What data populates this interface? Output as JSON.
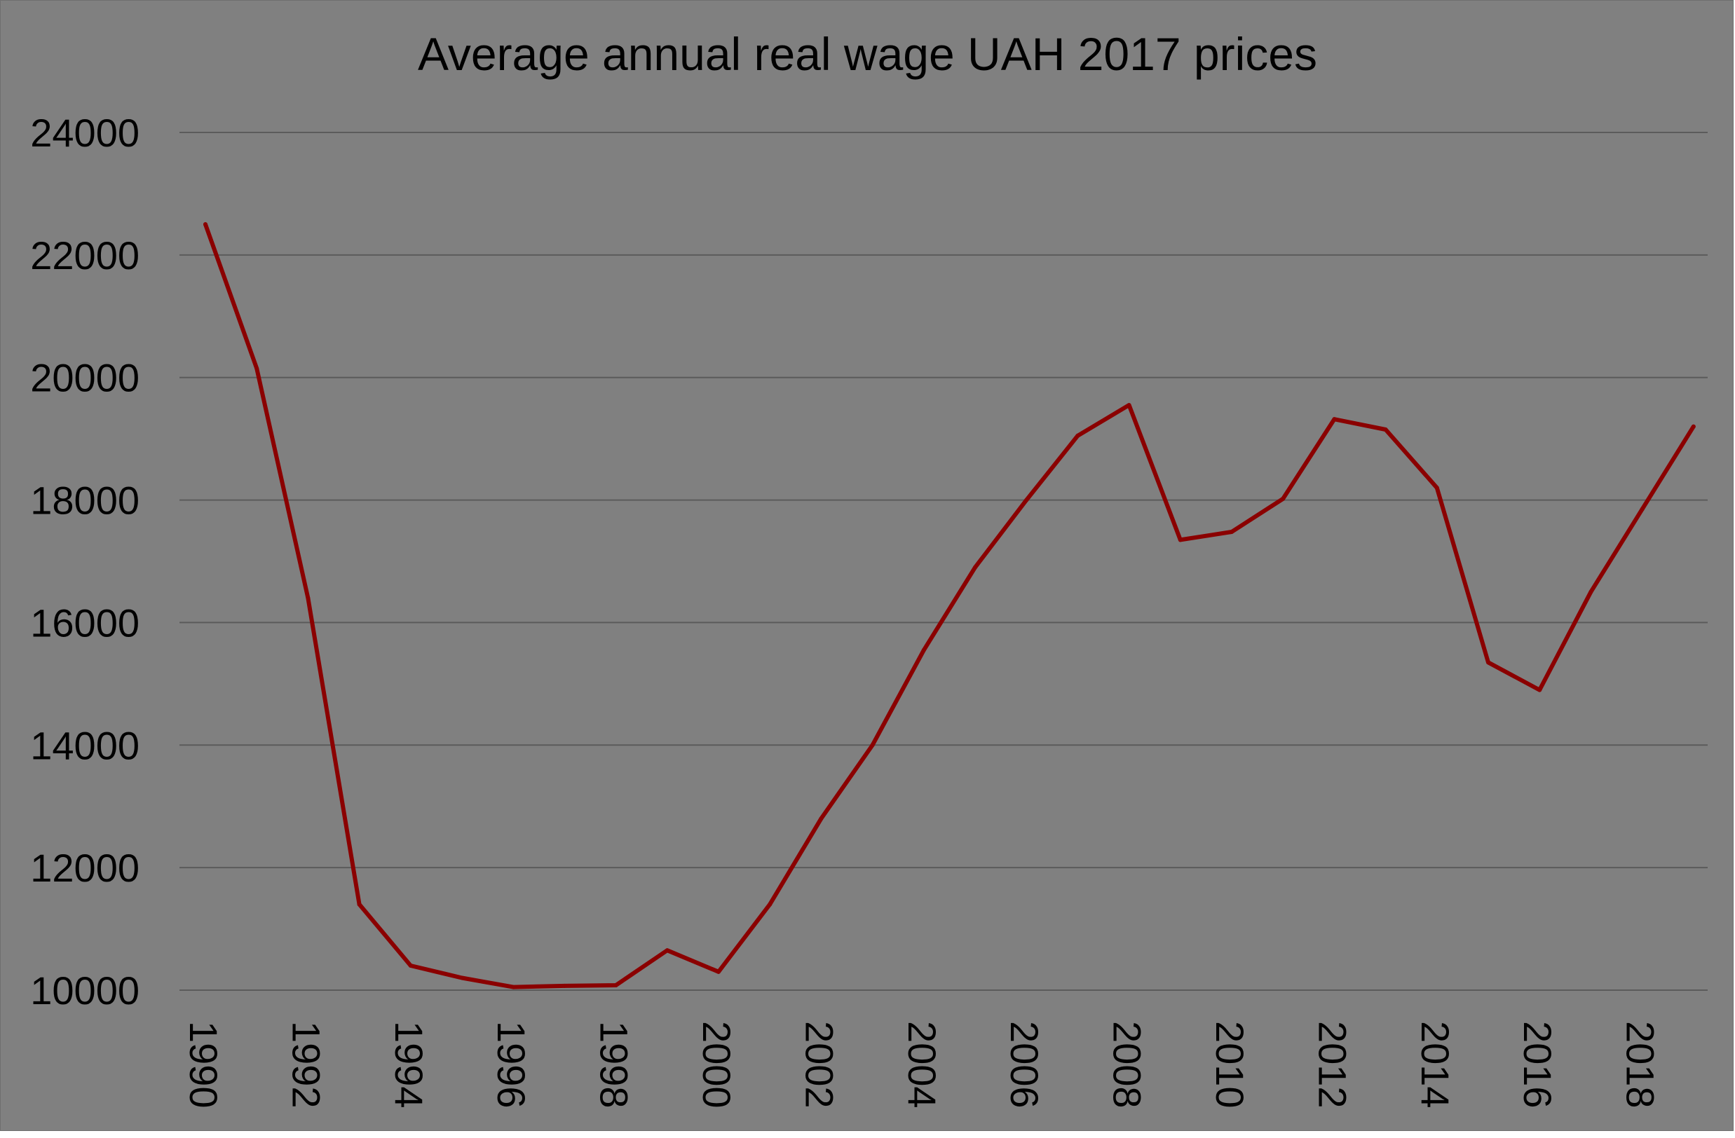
{
  "chart_data": {
    "type": "line",
    "title": "Average annual real wage UAH 2017 prices",
    "xlabel": "",
    "ylabel": "",
    "x": [
      1990,
      1991,
      1992,
      1993,
      1994,
      1995,
      1996,
      1997,
      1998,
      1999,
      2000,
      2001,
      2002,
      2003,
      2004,
      2005,
      2006,
      2007,
      2008,
      2009,
      2010,
      2011,
      2012,
      2013,
      2014,
      2015,
      2016,
      2017,
      2018,
      2019
    ],
    "x_tick_labels": [
      "1990",
      "1992",
      "1994",
      "1996",
      "1998",
      "2000",
      "2002",
      "2004",
      "2006",
      "2008",
      "2010",
      "2012",
      "2014",
      "2016",
      "2018"
    ],
    "x_tick_values": [
      1990,
      1992,
      1994,
      1996,
      1998,
      2000,
      2002,
      2004,
      2006,
      2008,
      2010,
      2012,
      2014,
      2016,
      2018
    ],
    "series": [
      {
        "values": [
          22500,
          20150,
          16400,
          11400,
          10400,
          10200,
          10050,
          10070,
          10080,
          10650,
          10300,
          11400,
          12800,
          14000,
          15550,
          16900,
          18000,
          19050,
          19550,
          17350,
          17480,
          18020,
          19320,
          19150,
          18200,
          15350,
          14900,
          16500,
          17850,
          19200
        ],
        "color": "#8b0000"
      }
    ],
    "ylim": [
      10000,
      24000
    ],
    "y_ticks": [
      10000,
      12000,
      14000,
      16000,
      18000,
      20000,
      22000,
      24000
    ],
    "grid": true,
    "background_color": "#808080",
    "line_color": "#8b0000"
  }
}
